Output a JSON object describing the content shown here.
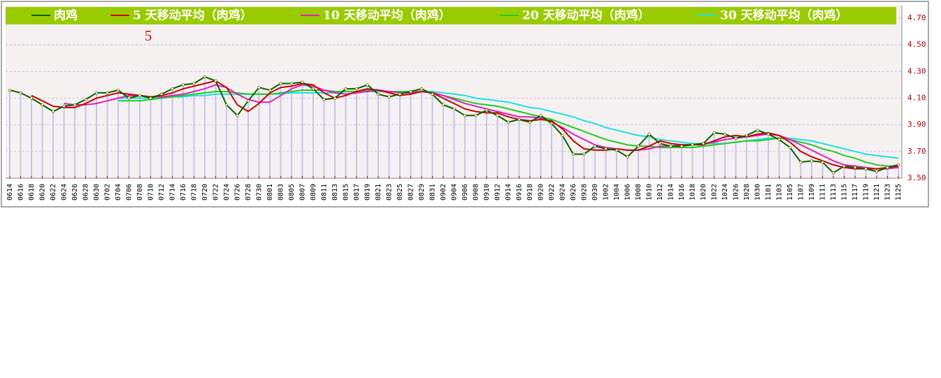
{
  "chart_data": {
    "type": "line",
    "annotation": "5",
    "categories": [
      "0614",
      "0616",
      "0618",
      "0620",
      "0622",
      "0624",
      "0626",
      "0628",
      "0630",
      "0702",
      "0704",
      "0706",
      "0708",
      "0710",
      "0712",
      "0714",
      "0716",
      "0718",
      "0720",
      "0722",
      "0724",
      "0726",
      "0728",
      "0730",
      "0801",
      "0803",
      "0805",
      "0807",
      "0809",
      "0811",
      "0813",
      "0815",
      "0817",
      "0819",
      "0821",
      "0823",
      "0825",
      "0827",
      "0829",
      "0831",
      "0902",
      "0904",
      "0906",
      "0908",
      "0910",
      "0912",
      "0914",
      "0916",
      "0918",
      "0920",
      "0922",
      "0924",
      "0926",
      "0928",
      "0930",
      "1002",
      "1004",
      "1006",
      "1008",
      "1010",
      "1012",
      "1014",
      "1016",
      "1018",
      "1020",
      "1022",
      "1024",
      "1026",
      "1028",
      "1030",
      "1101",
      "1103",
      "1105",
      "1107",
      "1109",
      "1111",
      "1113",
      "1115",
      "1117",
      "1119",
      "1121",
      "1123",
      "1125"
    ],
    "series": [
      {
        "name": "肉鸡",
        "color": "#006400",
        "values": [
          4.16,
          4.14,
          4.1,
          4.05,
          4.0,
          4.04,
          4.05,
          4.09,
          4.14,
          4.14,
          4.16,
          4.1,
          4.12,
          4.1,
          4.13,
          4.17,
          4.2,
          4.21,
          4.26,
          4.23,
          4.05,
          3.97,
          4.08,
          4.18,
          4.16,
          4.21,
          4.21,
          4.22,
          4.17,
          4.09,
          4.1,
          4.17,
          4.17,
          4.2,
          4.13,
          4.11,
          4.13,
          4.15,
          4.17,
          4.13,
          4.05,
          4.02,
          3.97,
          3.97,
          4.01,
          3.97,
          3.92,
          3.94,
          3.92,
          3.97,
          3.91,
          3.82,
          3.68,
          3.68,
          3.74,
          3.72,
          3.71,
          3.66,
          3.74,
          3.83,
          3.76,
          3.74,
          3.74,
          3.75,
          3.76,
          3.84,
          3.83,
          3.8,
          3.82,
          3.86,
          3.83,
          3.79,
          3.73,
          3.62,
          3.63,
          3.62,
          3.54,
          3.59,
          3.58,
          3.57,
          3.55,
          3.58,
          3.6
        ]
      },
      {
        "name": "5 天移动平均（肉鸡）",
        "color": "#cc0000",
        "values": [
          null,
          null,
          4.12,
          4.08,
          4.04,
          4.03,
          4.03,
          4.06,
          4.1,
          4.12,
          4.14,
          4.13,
          4.12,
          4.11,
          4.12,
          4.14,
          4.17,
          4.19,
          4.21,
          4.23,
          4.18,
          4.05,
          4.0,
          4.06,
          4.14,
          4.18,
          4.19,
          4.21,
          4.2,
          4.14,
          4.1,
          4.12,
          4.15,
          4.17,
          4.16,
          4.14,
          4.12,
          4.13,
          4.15,
          4.14,
          4.1,
          4.06,
          4.02,
          4.0,
          3.99,
          3.99,
          3.96,
          3.94,
          3.93,
          3.94,
          3.93,
          3.87,
          3.78,
          3.72,
          3.71,
          3.71,
          3.72,
          3.71,
          3.71,
          3.74,
          3.78,
          3.76,
          3.75,
          3.75,
          3.75,
          3.78,
          3.81,
          3.82,
          3.81,
          3.83,
          3.84,
          3.82,
          3.77,
          3.7,
          3.66,
          3.63,
          3.6,
          3.58,
          3.57,
          3.57,
          3.57,
          3.58,
          3.59
        ]
      },
      {
        "name": "10 天移动平均（肉鸡）",
        "color": "#e020c0",
        "values": [
          null,
          null,
          null,
          null,
          null,
          4.06,
          4.05,
          4.05,
          4.06,
          4.08,
          4.1,
          4.12,
          4.12,
          4.11,
          4.11,
          4.12,
          4.13,
          4.15,
          4.17,
          4.2,
          4.18,
          4.13,
          4.09,
          4.07,
          4.07,
          4.12,
          4.17,
          4.2,
          4.19,
          4.16,
          4.14,
          4.13,
          4.14,
          4.15,
          4.16,
          4.15,
          4.14,
          4.14,
          4.15,
          4.14,
          4.12,
          4.09,
          4.06,
          4.04,
          4.02,
          4.0,
          3.98,
          3.96,
          3.96,
          3.95,
          3.92,
          3.88,
          3.83,
          3.79,
          3.75,
          3.73,
          3.72,
          3.71,
          3.71,
          3.72,
          3.74,
          3.74,
          3.75,
          3.75,
          3.76,
          3.77,
          3.79,
          3.8,
          3.81,
          3.82,
          3.83,
          3.82,
          3.79,
          3.75,
          3.71,
          3.67,
          3.63,
          3.6,
          3.59,
          3.58,
          3.57,
          3.57,
          3.58
        ]
      },
      {
        "name": "20 天移动平均（肉鸡）",
        "color": "#22cc22",
        "values": [
          null,
          null,
          null,
          null,
          null,
          null,
          null,
          null,
          null,
          null,
          4.08,
          4.08,
          4.08,
          4.09,
          4.1,
          4.11,
          4.12,
          4.13,
          4.14,
          4.15,
          4.15,
          4.14,
          4.13,
          4.13,
          4.13,
          4.14,
          4.15,
          4.16,
          4.16,
          4.16,
          4.15,
          4.15,
          4.15,
          4.16,
          4.16,
          4.15,
          4.15,
          4.15,
          4.15,
          4.14,
          4.12,
          4.1,
          4.08,
          4.06,
          4.05,
          4.04,
          4.02,
          4.0,
          3.98,
          3.96,
          3.94,
          3.91,
          3.88,
          3.85,
          3.82,
          3.79,
          3.77,
          3.75,
          3.74,
          3.74,
          3.73,
          3.73,
          3.73,
          3.73,
          3.74,
          3.75,
          3.76,
          3.77,
          3.78,
          3.78,
          3.79,
          3.8,
          3.79,
          3.77,
          3.75,
          3.72,
          3.7,
          3.67,
          3.65,
          3.62,
          3.6,
          3.59,
          3.59
        ]
      },
      {
        "name": "30 天移动平均（肉鸡）",
        "color": "#20e0e0",
        "values": [
          null,
          null,
          null,
          null,
          null,
          null,
          null,
          null,
          null,
          null,
          4.1,
          4.1,
          4.1,
          4.1,
          4.11,
          4.11,
          4.11,
          4.12,
          4.12,
          4.13,
          4.13,
          4.13,
          4.13,
          4.13,
          4.13,
          4.13,
          4.14,
          4.14,
          4.14,
          4.14,
          4.14,
          4.15,
          4.15,
          4.15,
          4.15,
          4.15,
          4.15,
          4.15,
          4.15,
          4.15,
          4.14,
          4.13,
          4.12,
          4.1,
          4.09,
          4.08,
          4.07,
          4.05,
          4.03,
          4.02,
          4.0,
          3.98,
          3.96,
          3.93,
          3.91,
          3.88,
          3.86,
          3.84,
          3.82,
          3.81,
          3.79,
          3.78,
          3.77,
          3.76,
          3.76,
          3.76,
          3.76,
          3.77,
          3.78,
          3.79,
          3.8,
          3.8,
          3.8,
          3.79,
          3.78,
          3.76,
          3.74,
          3.72,
          3.7,
          3.68,
          3.67,
          3.66,
          3.65
        ]
      }
    ],
    "ylim": [
      3.5,
      4.7
    ],
    "yticks": [
      {
        "value": 3.5,
        "label": "3.50"
      },
      {
        "value": 3.7,
        "label": "3.70"
      },
      {
        "value": 3.9,
        "label": "3.90"
      },
      {
        "value": 4.1,
        "label": "4.10"
      },
      {
        "value": 4.3,
        "label": "4.30"
      },
      {
        "value": 4.5,
        "label": "4.50"
      },
      {
        "value": 4.7,
        "label": "4.70"
      }
    ],
    "grid": true,
    "bar_color": "#c4c4f4",
    "legend_color": "#99cc00"
  }
}
